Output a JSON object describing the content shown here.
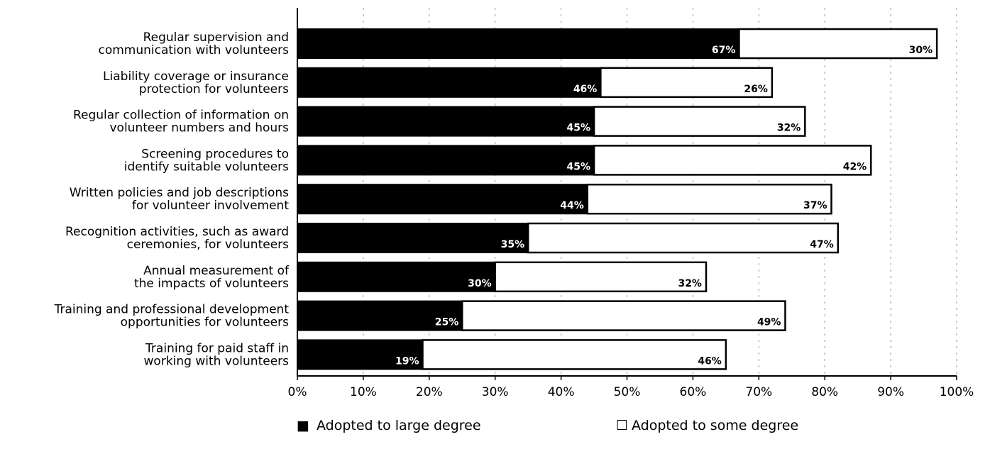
{
  "chart_data": {
    "type": "bar",
    "orientation": "horizontal",
    "stacked": true,
    "categories": [
      [
        "Regular supervision and",
        "communication with volunteers"
      ],
      [
        "Liability coverage or insurance",
        "protection for volunteers"
      ],
      [
        "Regular collection of information on",
        "volunteer numbers and hours"
      ],
      [
        "Screening procedures to",
        "identify suitable volunteers"
      ],
      [
        "Written policies and job descriptions",
        "for volunteer involvement"
      ],
      [
        "Recognition activities, such as award",
        "ceremonies, for volunteers"
      ],
      [
        "Annual measurement of",
        "the impacts of volunteers"
      ],
      [
        "Training and professional development",
        "opportunities for volunteers"
      ],
      [
        "Training for paid staff in",
        "working with volunteers"
      ]
    ],
    "series": [
      {
        "name": "Adopted to large degree",
        "color": "#000000",
        "values": [
          67,
          46,
          45,
          45,
          44,
          35,
          30,
          25,
          19
        ],
        "labels": [
          "67%",
          "46%",
          "45%",
          "45%",
          "44%",
          "35%",
          "30%",
          "25%",
          "19%"
        ]
      },
      {
        "name": "Adopted to some degree",
        "color": "#ffffff",
        "values": [
          30,
          26,
          32,
          42,
          37,
          47,
          32,
          49,
          46
        ],
        "labels": [
          "30%",
          "26%",
          "32%",
          "42%",
          "37%",
          "47%",
          "32%",
          "49%",
          "46%"
        ]
      }
    ],
    "xlim": [
      0,
      100
    ],
    "xticks": [
      "0%",
      "10%",
      "20%",
      "30%",
      "40%",
      "50%",
      "60%",
      "70%",
      "80%",
      "90%",
      "100%"
    ],
    "grid": true,
    "legend_position": "bottom",
    "legend": {
      "large_marker": "■",
      "some_marker": "☐",
      "large_label": "Adopted to large degree",
      "some_label": "Adopted to some degree"
    }
  }
}
